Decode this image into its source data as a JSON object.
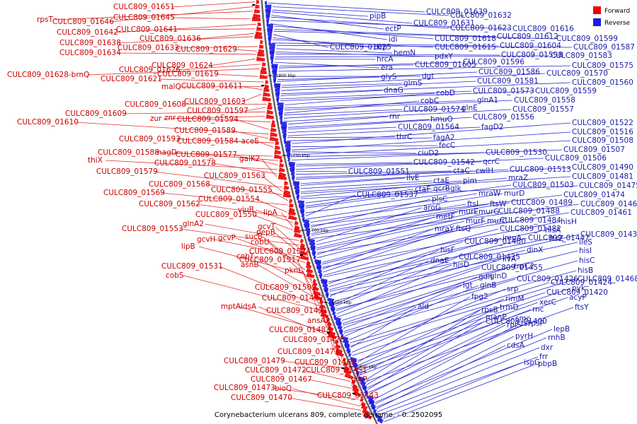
{
  "caption": "Corynebacterium ulcerans 809, complete genome. - 0..2502095",
  "legend": [
    {
      "label": "Forward",
      "color": "#ee0000"
    },
    {
      "label": "Reverse",
      "color": "#1a1ae6"
    }
  ],
  "ticks": [
    "1800 kbp",
    "1750 kbp",
    "1700 kbp",
    "1650 kbp",
    "1600 kbp"
  ],
  "forward_labels": [
    "CULC809_01651",
    "CULC809_01646",
    "rpsT",
    "CULC809_01645",
    "CULC809_01642",
    "CULC809_01641",
    "CULC809_01636",
    "CULC809_01638",
    "CULC809_01633",
    "CULC809_01629",
    "CULC809_01634",
    "CULC809_01624",
    "CULC809_01626",
    "CULC809_01628-brnQ",
    "CULC809_01619",
    "CULC809_01621",
    "malQ",
    "CULC809_01611",
    "CULC809_01603",
    "CULC809_01608",
    "CULC809_01597",
    "CULC809_01609",
    "zur",
    "znr",
    "CULC809_01594",
    "CULC809_01610",
    "CULC809_01589",
    "CULC809_01593",
    "CULC809_01584-aceE",
    "CULC809_01588",
    "nagD",
    "CULC809_01577",
    "thiX",
    "CULC809_01578",
    "galK2",
    "CULC809_01579",
    "CULC809_01563",
    "CULC809_01568",
    "CULC809_01555",
    "CULC809_01569",
    "CULC809_01554",
    "CULC809_01562",
    "viuB",
    "lipA",
    "CULC809_01550",
    "glnA2",
    "CULC809_01553",
    "gcvT",
    "pepB",
    "gcvH",
    "gcvP",
    "sucB",
    "lipB",
    "cobU",
    "CULC809_01524",
    "cobT",
    "asnB",
    "CULC809_01517",
    "CULC809_01531",
    "cobS",
    "pknL",
    "CULC809_01509",
    "CULC809_01492",
    "mptA",
    "idsA",
    "CULC809_01491",
    "ansA2",
    "CULC809_01483",
    "CULC809_01476",
    "CULC809_01471",
    "CULC809_01479",
    "CULC809_01466",
    "CULC809_01472",
    "CULC809_01451",
    "CULC809_01467",
    "glgP",
    "CULC809_01473",
    "bioQ",
    "CULC809_01470",
    "CULC809_01443"
  ],
  "reverse_labels": [
    "CULC809_01639",
    "CULC809_01632",
    "pipB",
    "CULC809_01631",
    "ectP",
    "CULC809_01623",
    "CULC809_01616",
    "idi",
    "CULC809_01618",
    "CULC809_01612",
    "CULC809_01599",
    "CULC809_01625",
    "dcp",
    "CULC809_01615",
    "CULC809_01604",
    "CULC809_01587",
    "hemN",
    "pdxY",
    "CULC809_01598",
    "CULC809_01583",
    "hrcA",
    "era",
    "CULC809_01605",
    "CULC809_01596",
    "CULC809_01575",
    "dgt",
    "glyS",
    "CULC809_01586",
    "CULC809_01570",
    "glmS",
    "CULC809_01581",
    "CULC809_01560",
    "dnaG",
    "CULC809_01573",
    "CULC809_01559",
    "cobD",
    "glnA1",
    "CULC809_01558",
    "cobC",
    "CULC809_01574",
    "glnE",
    "CULC809_01557",
    "rnr",
    "hmuO",
    "CULC809_01556",
    "CULC809_01564",
    "fagD2",
    "thrC",
    "fagA2",
    "CULC809_01522",
    "fecC",
    "CULC809_01516",
    "ciuD2",
    "CULC809_01508",
    "CULC809_01530",
    "CULC809_01507",
    "CULC809_01542",
    "qcrC",
    "CULC809_01506",
    "CULC809_01551",
    "ctaC",
    "cwlH",
    "CULC809_01513",
    "CULC809_01490",
    "ilvE",
    "ctaE",
    "pim",
    "CULC809_01481",
    "mraZ",
    "CULC809_01475",
    "ctaF",
    "qcrB",
    "glk",
    "CULC809_01503",
    "CULC809_01537",
    "mraW",
    "murD",
    "CULC809_01474",
    "plsC",
    "ftsI",
    "ftsW",
    "CULC809_01489",
    "CULC809_01462",
    "aroG",
    "murE",
    "murG",
    "CULC809_01488",
    "CULC809_01461",
    "metF",
    "murF",
    "murC",
    "CULC809_01484",
    "hisH",
    "mraY",
    "ftsQ",
    "CULC809_01482",
    "hisA",
    "ftsZ",
    "CULC809_01480",
    "impA",
    "CULC809_01447",
    "CULC809_01438",
    "ileS",
    "hisF",
    "dinX",
    "dnaE",
    "CULC809_01435",
    "hisI",
    "ilvA",
    "hisD",
    "CULC809_01455",
    "trpC2",
    "glnD",
    "hisC",
    "gdh",
    "CULC809_01426",
    "hisB",
    "lgt",
    "glnB",
    "CULC809_01424",
    "CULC809_01468",
    "ald",
    "srp",
    "CULC809_01420",
    "pyk",
    "fpg2",
    "rimM",
    "xerC",
    "acyP",
    "trmD",
    "rnc",
    "rpsB",
    "ftsY",
    "manP",
    "smc",
    "CULC809_01400",
    "rpsP",
    "rplS",
    "tsf",
    "lepB",
    "pyrH",
    "rnhB",
    "cdsA",
    "dxr",
    "frr",
    "ispG",
    "pbpB"
  ]
}
